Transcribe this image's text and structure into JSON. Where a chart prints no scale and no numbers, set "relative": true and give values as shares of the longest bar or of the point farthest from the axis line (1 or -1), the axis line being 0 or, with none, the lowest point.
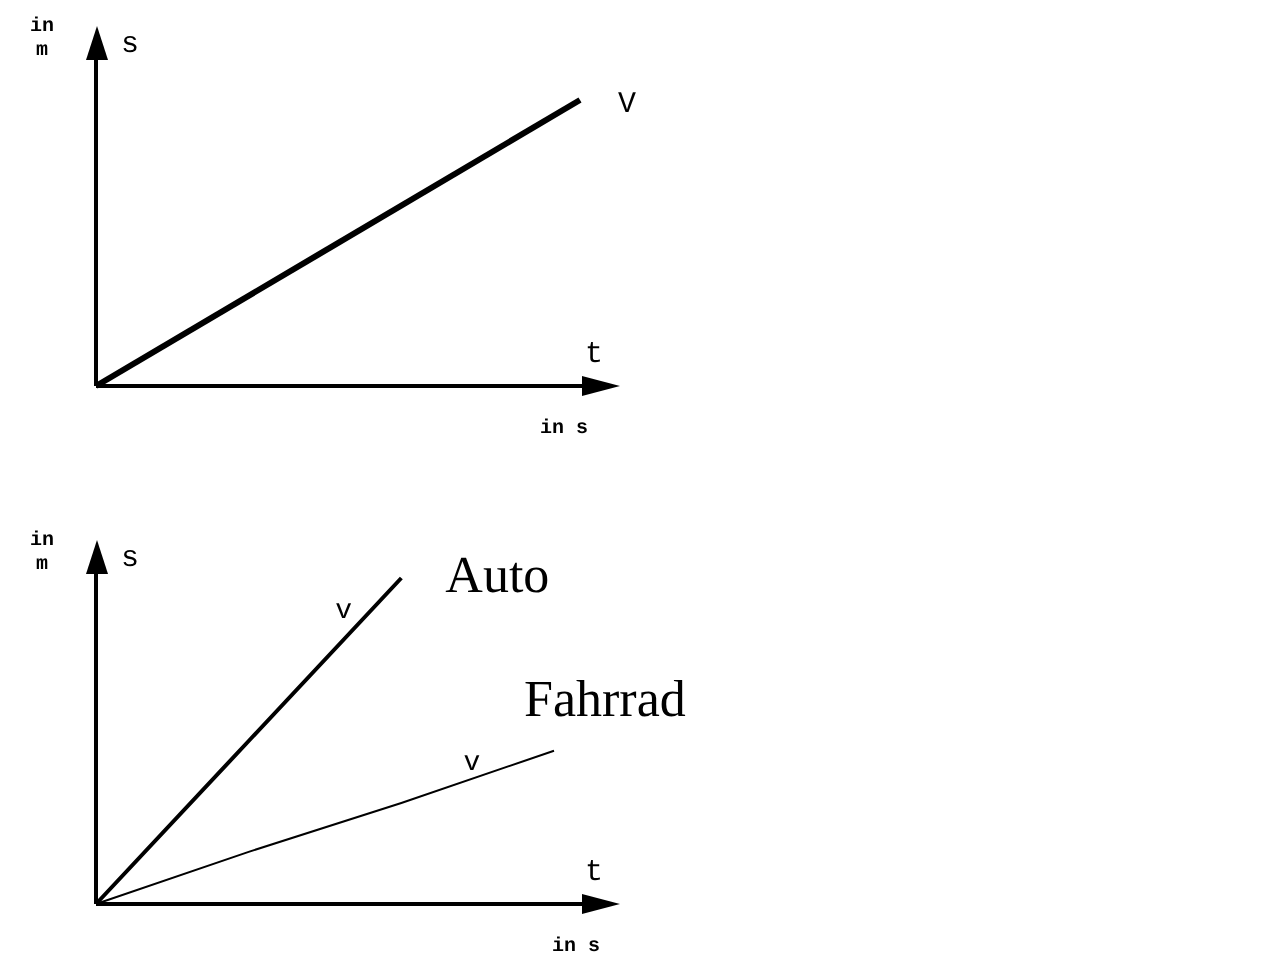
{
  "chart_data": [
    {
      "type": "line",
      "relative": true,
      "xlabel": "t",
      "ylabel": "s",
      "categories": [
        null,
        null
      ],
      "series": [
        {
          "name": "V",
          "color": "#000000",
          "values": [
            0,
            1
          ]
        }
      ],
      "annotations": [
        "in m",
        "in s"
      ]
    },
    {
      "type": "line",
      "relative": true,
      "xlabel": "t",
      "ylabel": "s",
      "categories": [
        null,
        null,
        null,
        null
      ],
      "series": [
        {
          "name": "Auto",
          "color": "#000000",
          "values": [
            0,
            0.5,
            1,
            null
          ]
        },
        {
          "name": "Fahrrad",
          "color": "#000000",
          "values": [
            0,
            0.16,
            0.31,
            0.47
          ]
        }
      ],
      "annotations": [
        "in m",
        "in s",
        "v",
        "v"
      ]
    }
  ]
}
